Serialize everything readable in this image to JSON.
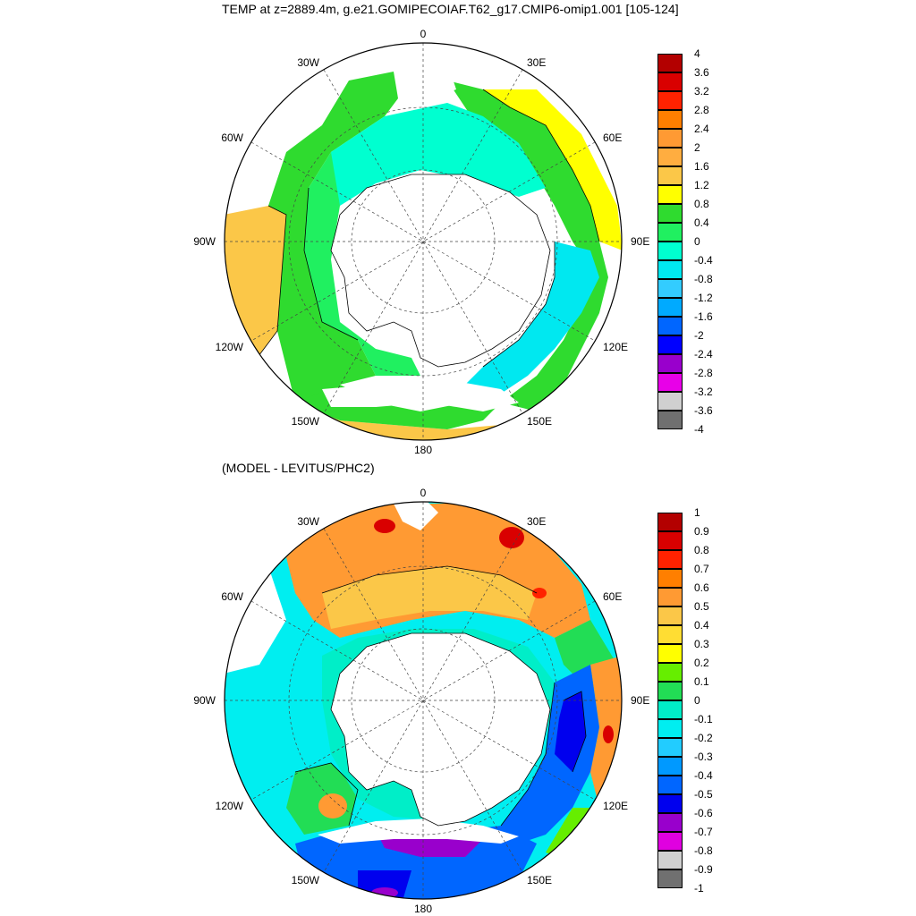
{
  "titles": {
    "main": "TEMP at z=2889.4m, g.e21.GOMIPECOIAF.T62_g17.CMIP6-omip1.001 [105-124]",
    "sub": "(MODEL - LEVITUS/PHC2)"
  },
  "longitude_labels": {
    "top": "0",
    "bottom": "180",
    "left": "90W",
    "right": "90E",
    "upper_left_1": "30W",
    "upper_left_2": "60W",
    "lower_left_1": "120W",
    "lower_left_2": "150W",
    "upper_right_1": "30E",
    "upper_right_2": "60E",
    "lower_right_1": "120E",
    "lower_right_2": "150E"
  },
  "colorbar_top": {
    "labels": [
      "4",
      "3.6",
      "3.2",
      "2.8",
      "2.4",
      "2",
      "1.6",
      "1.2",
      "0.8",
      "0.4",
      "0",
      "-0.4",
      "-0.8",
      "-1.2",
      "-1.6",
      "-2",
      "-2.4",
      "-2.8",
      "-3.2",
      "-3.6",
      "-4"
    ],
    "colors": [
      "#b30000",
      "#d90000",
      "#ff2200",
      "#ff7f00",
      "#ff9a33",
      "#ffad40",
      "#fbc748",
      "#ffff00",
      "#2fdb2f",
      "#20f060",
      "#00ffd0",
      "#00e8f0",
      "#33ccff",
      "#00aaff",
      "#0066ff",
      "#0000ff",
      "#9900cc",
      "#e800e8",
      "#d0d0d0",
      "#707070"
    ]
  },
  "colorbar_bottom": {
    "labels": [
      "1",
      "0.9",
      "0.8",
      "0.7",
      "0.6",
      "0.5",
      "0.4",
      "0.3",
      "0.2",
      "0.1",
      "0",
      "-0.1",
      "-0.2",
      "-0.3",
      "-0.4",
      "-0.5",
      "-0.6",
      "-0.7",
      "-0.8",
      "-0.9",
      "-1"
    ],
    "colors": [
      "#b30000",
      "#d90000",
      "#ff2200",
      "#ff7f00",
      "#ff9a33",
      "#fbc748",
      "#ffdd33",
      "#ffff00",
      "#66ee00",
      "#22dd55",
      "#00eec8",
      "#00eef0",
      "#22ccff",
      "#0099ff",
      "#0066ff",
      "#0000ee",
      "#9900cc",
      "#e000e0",
      "#d0d0d0",
      "#707070"
    ]
  }
}
